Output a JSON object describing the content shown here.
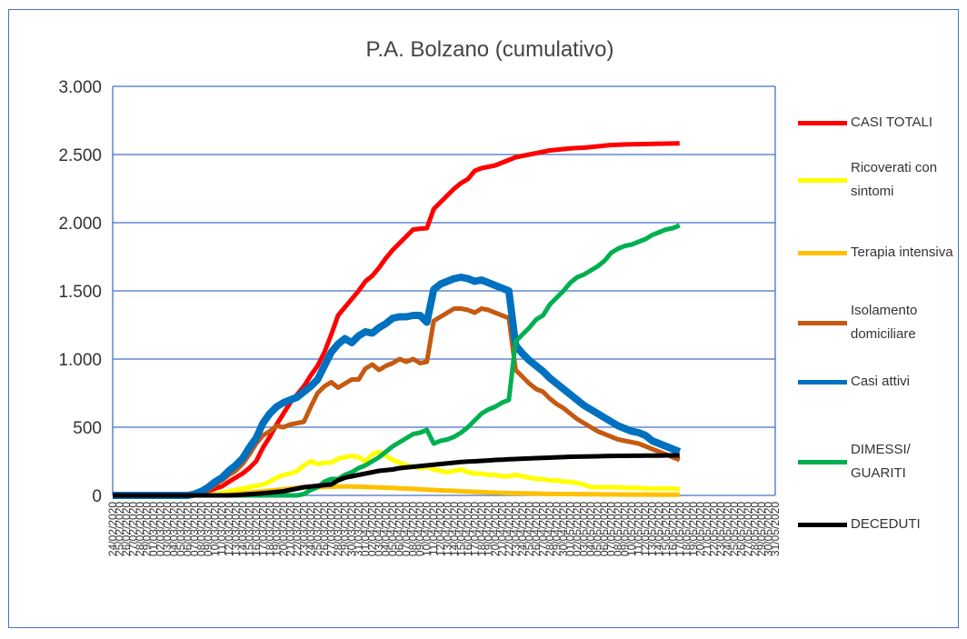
{
  "chart_data": {
    "type": "line",
    "title": "P.A. Bolzano (cumulativo)",
    "categories": [
      "24/02/2020",
      "25/02/2020",
      "26/02/2020",
      "27/02/2020",
      "28/02/2020",
      "29/02/2020",
      "01/03/2020",
      "02/03/2020",
      "03/03/2020",
      "04/03/2020",
      "05/03/2020",
      "06/03/2020",
      "07/03/2020",
      "08/03/2020",
      "09/03/2020",
      "10/03/2020",
      "11/03/2020",
      "12/03/2020",
      "13/03/2020",
      "14/03/2020",
      "15/03/2020",
      "16/03/2020",
      "17/03/2020",
      "18/03/2020",
      "19/03/2020",
      "20/03/2020",
      "21/03/2020",
      "22/03/2020",
      "23/03/2020",
      "24/03/2020",
      "25/03/2020",
      "26/03/2020",
      "27/03/2020",
      "28/03/2020",
      "29/03/2020",
      "30/03/2020",
      "31/03/2020",
      "01/04/2020",
      "02/04/2020",
      "03/04/2020",
      "04/04/2020",
      "05/04/2020",
      "06/04/2020",
      "07/04/2020",
      "08/04/2020",
      "09/04/2020",
      "10/04/2020",
      "11/04/2020",
      "12/04/2020",
      "13/04/2020",
      "14/04/2020",
      "15/04/2020",
      "16/04/2020",
      "17/04/2020",
      "18/04/2020",
      "19/04/2020",
      "20/04/2020",
      "21/04/2020",
      "22/04/2020",
      "23/04/2020",
      "24/04/2020",
      "25/04/2020",
      "26/04/2020",
      "27/04/2020",
      "28/04/2020",
      "29/04/2020",
      "30/04/2020",
      "01/05/2020",
      "02/05/2020",
      "03/05/2020",
      "04/05/2020",
      "05/05/2020",
      "06/05/2020",
      "07/05/2020",
      "08/05/2020",
      "09/05/2020",
      "10/05/2020",
      "11/05/2020",
      "12/05/2020",
      "13/05/2020",
      "14/05/2020",
      "15/05/2020",
      "16/05/2020",
      "17/05/2020",
      "18/05/2020",
      "19/05/2020",
      "20/05/2020",
      "21/05/2020",
      "22/05/2020",
      "23/05/2020",
      "24/05/2020",
      "25/05/2020",
      "26/05/2020",
      "27/05/2020",
      "28/05/2020",
      "29/05/2020",
      "30/05/2020",
      "31/05/2020"
    ],
    "series": [
      {
        "name": "CASI TOTALI",
        "color": "#ff0000",
        "values": [
          0,
          0,
          0,
          0,
          0,
          0,
          1,
          1,
          1,
          2,
          4,
          6,
          10,
          20,
          30,
          50,
          66,
          100,
          130,
          160,
          200,
          250,
          350,
          430,
          520,
          600,
          680,
          740,
          800,
          880,
          950,
          1050,
          1180,
          1320,
          1380,
          1440,
          1500,
          1570,
          1610,
          1670,
          1740,
          1800,
          1850,
          1900,
          1950,
          1956,
          1960,
          2100,
          2150,
          2200,
          2250,
          2290,
          2320,
          2380,
          2400,
          2410,
          2420,
          2440,
          2460,
          2480,
          2490,
          2500,
          2510,
          2520,
          2530,
          2535,
          2540,
          2545,
          2548,
          2550,
          2555,
          2560,
          2565,
          2570,
          2572,
          2574,
          2575,
          2576,
          2577,
          2578,
          2579,
          2580,
          2581,
          2582,
          null,
          null,
          null,
          null,
          null,
          null,
          null,
          null,
          null,
          null,
          null,
          null,
          null,
          null
        ]
      },
      {
        "name": "Ricoverati con sintomi",
        "color": "#ffff00",
        "values": [
          0,
          0,
          0,
          0,
          0,
          0,
          0,
          0,
          0,
          0,
          0,
          0,
          0,
          0,
          0,
          10,
          20,
          30,
          40,
          50,
          60,
          70,
          80,
          100,
          130,
          150,
          160,
          180,
          220,
          250,
          230,
          240,
          240,
          270,
          280,
          290,
          280,
          250,
          300,
          320,
          290,
          260,
          240,
          220,
          210,
          200,
          210,
          190,
          180,
          170,
          180,
          190,
          170,
          160,
          160,
          150,
          150,
          140,
          140,
          150,
          140,
          130,
          120,
          120,
          110,
          110,
          100,
          100,
          90,
          80,
          60,
          60,
          60,
          60,
          60,
          55,
          55,
          55,
          50,
          50,
          50,
          50,
          50,
          45,
          null,
          null,
          null,
          null,
          null,
          null,
          null,
          null,
          null,
          null,
          null,
          null,
          null,
          null
        ]
      },
      {
        "name": "Terapia intensiva",
        "color": "#ffc000",
        "values": [
          0,
          0,
          0,
          0,
          0,
          0,
          0,
          0,
          0,
          0,
          0,
          0,
          0,
          0,
          0,
          0,
          0,
          5,
          10,
          15,
          20,
          25,
          30,
          35,
          40,
          45,
          50,
          55,
          60,
          60,
          60,
          62,
          64,
          65,
          66,
          65,
          64,
          62,
          60,
          58,
          56,
          55,
          52,
          50,
          48,
          45,
          42,
          40,
          37,
          35,
          33,
          30,
          28,
          26,
          24,
          22,
          20,
          18,
          17,
          16,
          15,
          14,
          13,
          12,
          11,
          10,
          10,
          9,
          9,
          8,
          8,
          8,
          7,
          7,
          7,
          6,
          6,
          6,
          6,
          5,
          5,
          5,
          5,
          5,
          null,
          null,
          null,
          null,
          null,
          null,
          null,
          null,
          null,
          null,
          null,
          null,
          null,
          null
        ]
      },
      {
        "name": "Isolamento domiciliare",
        "color": "#c55a11",
        "values": [
          0,
          0,
          0,
          0,
          0,
          0,
          0,
          0,
          0,
          0,
          0,
          0,
          10,
          30,
          40,
          80,
          110,
          150,
          180,
          230,
          300,
          380,
          440,
          470,
          510,
          500,
          520,
          530,
          540,
          650,
          750,
          800,
          830,
          790,
          820,
          850,
          850,
          930,
          960,
          920,
          950,
          970,
          1000,
          980,
          1000,
          970,
          980,
          1280,
          1310,
          1340,
          1370,
          1370,
          1360,
          1340,
          1370,
          1360,
          1340,
          1320,
          1300,
          920,
          870,
          820,
          780,
          760,
          710,
          670,
          640,
          600,
          560,
          530,
          500,
          470,
          450,
          430,
          410,
          400,
          390,
          380,
          360,
          340,
          320,
          300,
          280,
          260,
          null,
          null,
          null,
          null,
          null,
          null,
          null,
          null,
          null,
          null,
          null,
          null,
          null,
          null
        ]
      },
      {
        "name": "Casi attivi",
        "color": "#0070c0",
        "values": [
          0,
          0,
          0,
          0,
          0,
          0,
          0,
          0,
          0,
          0,
          0,
          0,
          10,
          30,
          60,
          100,
          130,
          180,
          220,
          270,
          350,
          420,
          530,
          600,
          650,
          680,
          700,
          720,
          760,
          800,
          850,
          950,
          1050,
          1110,
          1150,
          1120,
          1170,
          1200,
          1190,
          1230,
          1260,
          1300,
          1310,
          1310,
          1320,
          1320,
          1270,
          1510,
          1550,
          1570,
          1590,
          1600,
          1590,
          1570,
          1580,
          1560,
          1540,
          1520,
          1500,
          1100,
          1040,
          990,
          950,
          910,
          860,
          820,
          780,
          740,
          700,
          660,
          630,
          600,
          570,
          540,
          510,
          490,
          470,
          460,
          440,
          400,
          380,
          360,
          340,
          320,
          null,
          null,
          null,
          null,
          null,
          null,
          null,
          null,
          null,
          null,
          null,
          null,
          null,
          null
        ]
      },
      {
        "name": "DIMESSI/ GUARITI",
        "color": "#00b050",
        "values": [
          0,
          0,
          0,
          0,
          0,
          0,
          0,
          0,
          0,
          0,
          0,
          0,
          0,
          0,
          0,
          0,
          0,
          0,
          0,
          0,
          0,
          0,
          0,
          0,
          0,
          0,
          0,
          0,
          10,
          40,
          60,
          100,
          120,
          120,
          150,
          170,
          200,
          220,
          250,
          280,
          320,
          360,
          390,
          420,
          450,
          460,
          480,
          380,
          400,
          410,
          430,
          460,
          500,
          550,
          600,
          630,
          650,
          680,
          700,
          1130,
          1180,
          1230,
          1290,
          1320,
          1400,
          1450,
          1500,
          1560,
          1600,
          1620,
          1650,
          1680,
          1720,
          1780,
          1810,
          1830,
          1840,
          1860,
          1880,
          1910,
          1930,
          1950,
          1960,
          1980,
          null,
          null,
          null,
          null,
          null,
          null,
          null,
          null,
          null,
          null,
          null,
          null,
          null,
          null
        ]
      },
      {
        "name": "DECEDUTI",
        "color": "#000000",
        "values": [
          0,
          0,
          0,
          0,
          0,
          0,
          0,
          0,
          0,
          0,
          0,
          0,
          0,
          0,
          0,
          0,
          0,
          0,
          2,
          5,
          8,
          12,
          16,
          20,
          25,
          30,
          40,
          50,
          60,
          65,
          70,
          75,
          80,
          110,
          130,
          140,
          150,
          160,
          170,
          180,
          185,
          190,
          200,
          205,
          210,
          215,
          220,
          225,
          230,
          235,
          240,
          245,
          248,
          250,
          253,
          256,
          260,
          262,
          265,
          267,
          269,
          271,
          273,
          275,
          277,
          279,
          281,
          283,
          284,
          285,
          286,
          287,
          288,
          289,
          290,
          290,
          291,
          291,
          292,
          292,
          292,
          293,
          293,
          293,
          null,
          null,
          null,
          null,
          null,
          null,
          null,
          null,
          null,
          null,
          null,
          null,
          null,
          null
        ]
      }
    ],
    "ylim": [
      0,
      3000
    ],
    "yticks": [
      0,
      500,
      {
        "value": 1000,
        "label": "1.000"
      },
      {
        "value": 1500,
        "label": "1.500"
      },
      {
        "value": 2000,
        "label": "2.000"
      },
      {
        "value": 2500,
        "label": "2.500"
      },
      {
        "value": 3000,
        "label": "3.000"
      }
    ],
    "grid": true,
    "grid_color": "#4472c4",
    "legend": "right"
  }
}
